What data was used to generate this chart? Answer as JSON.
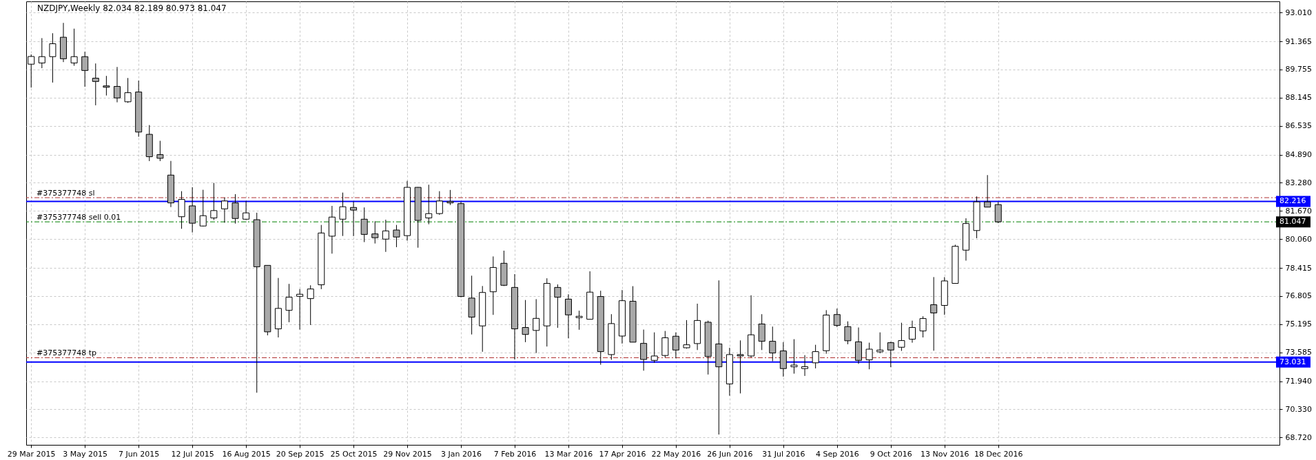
{
  "chart_data": {
    "type": "candlestick",
    "title": "NZDJPY,Weekly  82.034 82.189 80.973 81.047",
    "x": [
      "2015-03-29",
      "2015-04-05",
      "2015-04-12",
      "2015-04-19",
      "2015-04-26",
      "2015-05-03",
      "2015-05-10",
      "2015-05-17",
      "2015-05-24",
      "2015-05-31",
      "2015-06-07",
      "2015-06-14",
      "2015-06-21",
      "2015-06-28",
      "2015-07-05",
      "2015-07-12",
      "2015-07-19",
      "2015-07-26",
      "2015-08-02",
      "2015-08-09",
      "2015-08-16",
      "2015-08-23",
      "2015-08-30",
      "2015-09-06",
      "2015-09-13",
      "2015-09-20",
      "2015-09-27",
      "2015-10-04",
      "2015-10-11",
      "2015-10-18",
      "2015-10-25",
      "2015-11-01",
      "2015-11-08",
      "2015-11-15",
      "2015-11-22",
      "2015-11-29",
      "2015-12-06",
      "2015-12-13",
      "2015-12-20",
      "2015-12-27",
      "2016-01-03",
      "2016-01-10",
      "2016-01-17",
      "2016-01-24",
      "2016-01-31",
      "2016-02-07",
      "2016-02-14",
      "2016-02-21",
      "2016-02-28",
      "2016-03-06",
      "2016-03-13",
      "2016-03-20",
      "2016-03-27",
      "2016-04-03",
      "2016-04-10",
      "2016-04-17",
      "2016-04-24",
      "2016-05-01",
      "2016-05-08",
      "2016-05-15",
      "2016-05-22",
      "2016-05-29",
      "2016-06-05",
      "2016-06-12",
      "2016-06-19",
      "2016-06-26",
      "2016-07-03",
      "2016-07-10",
      "2016-07-17",
      "2016-07-24",
      "2016-07-31",
      "2016-08-07",
      "2016-08-14",
      "2016-08-21",
      "2016-08-28",
      "2016-09-04",
      "2016-09-11",
      "2016-09-18",
      "2016-09-25",
      "2016-10-02",
      "2016-10-09",
      "2016-10-16",
      "2016-10-23",
      "2016-10-30",
      "2016-11-06",
      "2016-11-13",
      "2016-11-20",
      "2016-11-27",
      "2016-12-04",
      "2016-12-11",
      "2016-12-18"
    ],
    "ohlc": [
      [
        90.06,
        90.62,
        88.72,
        90.5
      ],
      [
        90.13,
        91.55,
        89.83,
        90.49
      ],
      [
        90.49,
        91.83,
        89.01,
        91.23
      ],
      [
        91.6,
        92.42,
        90.18,
        90.37
      ],
      [
        90.13,
        92.09,
        89.97,
        90.49
      ],
      [
        90.49,
        90.77,
        88.77,
        89.7
      ],
      [
        89.26,
        90.1,
        87.71,
        89.07
      ],
      [
        88.82,
        89.39,
        88.27,
        88.74
      ],
      [
        88.79,
        89.9,
        87.88,
        88.13
      ],
      [
        87.91,
        89.27,
        87.85,
        88.43
      ],
      [
        88.47,
        89.12,
        85.91,
        86.18
      ],
      [
        86.05,
        86.58,
        84.52,
        84.77
      ],
      [
        84.89,
        85.68,
        84.52,
        84.68
      ],
      [
        83.72,
        84.53,
        81.89,
        82.13
      ],
      [
        81.34,
        82.8,
        80.65,
        82.33
      ],
      [
        81.96,
        83.03,
        80.44,
        80.97
      ],
      [
        80.81,
        82.88,
        80.78,
        81.4
      ],
      [
        81.27,
        83.27,
        81.15,
        81.69
      ],
      [
        81.79,
        82.43,
        81.0,
        82.24
      ],
      [
        82.13,
        82.63,
        80.95,
        81.24
      ],
      [
        81.2,
        82.24,
        81.15,
        81.56
      ],
      [
        81.17,
        81.57,
        71.28,
        78.48
      ],
      [
        78.56,
        78.56,
        74.56,
        74.76
      ],
      [
        74.93,
        77.84,
        74.44,
        76.1
      ],
      [
        75.99,
        77.5,
        75.31,
        76.74
      ],
      [
        76.79,
        77.21,
        74.89,
        76.91
      ],
      [
        76.66,
        77.42,
        75.15,
        77.21
      ],
      [
        77.45,
        80.87,
        77.2,
        80.41
      ],
      [
        80.23,
        81.96,
        79.23,
        81.32
      ],
      [
        81.2,
        82.72,
        80.24,
        81.91
      ],
      [
        81.87,
        82.21,
        80.23,
        81.72
      ],
      [
        81.2,
        81.87,
        79.89,
        80.33
      ],
      [
        80.36,
        81.08,
        79.81,
        80.14
      ],
      [
        80.06,
        81.17,
        79.33,
        80.53
      ],
      [
        80.58,
        80.87,
        79.6,
        80.18
      ],
      [
        80.26,
        83.39,
        79.97,
        83.02
      ],
      [
        83.02,
        83.03,
        79.57,
        81.13
      ],
      [
        81.27,
        83.17,
        80.91,
        81.52
      ],
      [
        81.52,
        82.8,
        81.45,
        82.24
      ],
      [
        82.21,
        82.87,
        82.01,
        82.13
      ],
      [
        82.09,
        82.19,
        76.74,
        76.78
      ],
      [
        76.69,
        77.97,
        74.61,
        75.6
      ],
      [
        75.1,
        77.38,
        73.62,
        77.01
      ],
      [
        77.05,
        79.07,
        75.73,
        78.44
      ],
      [
        78.68,
        79.4,
        77.38,
        77.42
      ],
      [
        77.3,
        78.06,
        73.18,
        74.93
      ],
      [
        75.01,
        76.58,
        74.17,
        74.61
      ],
      [
        74.84,
        76.63,
        73.55,
        75.53
      ],
      [
        75.1,
        77.82,
        73.92,
        77.53
      ],
      [
        77.3,
        77.47,
        74.99,
        76.74
      ],
      [
        76.63,
        76.91,
        74.39,
        75.73
      ],
      [
        75.57,
        75.97,
        74.88,
        75.65
      ],
      [
        75.48,
        78.22,
        75.48,
        77.03
      ],
      [
        76.78,
        77.11,
        72.88,
        73.63
      ],
      [
        73.46,
        75.77,
        73.16,
        75.23
      ],
      [
        74.52,
        77.15,
        74.09,
        76.54
      ],
      [
        76.51,
        77.37,
        74.17,
        74.17
      ],
      [
        74.1,
        74.89,
        72.54,
        73.18
      ],
      [
        73.13,
        74.73,
        72.99,
        73.38
      ],
      [
        73.41,
        74.81,
        73.3,
        74.42
      ],
      [
        74.51,
        74.73,
        73.25,
        73.72
      ],
      [
        73.85,
        75.43,
        73.8,
        74.02
      ],
      [
        74.09,
        76.37,
        73.72,
        75.41
      ],
      [
        75.31,
        75.4,
        72.32,
        73.35
      ],
      [
        74.07,
        77.7,
        68.89,
        72.76
      ],
      [
        71.78,
        73.85,
        71.11,
        73.46
      ],
      [
        73.46,
        74.27,
        71.24,
        73.38
      ],
      [
        73.38,
        76.85,
        73.3,
        74.59
      ],
      [
        75.21,
        75.77,
        73.72,
        74.22
      ],
      [
        74.22,
        75.06,
        73.08,
        73.55
      ],
      [
        73.67,
        74.17,
        72.2,
        72.66
      ],
      [
        72.76,
        74.34,
        72.37,
        72.86
      ],
      [
        72.66,
        73.43,
        72.24,
        72.77
      ],
      [
        72.99,
        74.02,
        72.67,
        73.63
      ],
      [
        73.68,
        76.0,
        73.51,
        75.72
      ],
      [
        75.75,
        76.09,
        75.03,
        75.13
      ],
      [
        75.06,
        75.36,
        74.05,
        74.25
      ],
      [
        74.19,
        75.01,
        72.93,
        73.13
      ],
      [
        73.16,
        74.14,
        72.62,
        73.77
      ],
      [
        73.62,
        74.73,
        73.53,
        73.72
      ],
      [
        74.14,
        74.19,
        72.74,
        73.72
      ],
      [
        73.88,
        75.28,
        73.67,
        74.26
      ],
      [
        74.34,
        75.4,
        74.14,
        75.01
      ],
      [
        74.81,
        75.65,
        74.44,
        75.52
      ],
      [
        76.31,
        77.89,
        73.68,
        75.84
      ],
      [
        76.27,
        77.89,
        75.73,
        77.67
      ],
      [
        77.53,
        79.74,
        77.53,
        79.65
      ],
      [
        79.43,
        81.25,
        78.83,
        80.95
      ],
      [
        80.55,
        82.5,
        80.11,
        82.19
      ],
      [
        82.19,
        83.72,
        81.89,
        81.89
      ],
      [
        82.034,
        82.189,
        80.973,
        81.047
      ]
    ],
    "xlim": [
      "2015-03-28",
      "2017-06-17"
    ],
    "xticks": [
      {
        "value": "2015-03-29",
        "label": "29 Mar 2015"
      },
      {
        "value": "2015-05-03",
        "label": "3 May 2015"
      },
      {
        "value": "2015-06-07",
        "label": "7 Jun 2015"
      },
      {
        "value": "2015-07-12",
        "label": "12 Jul 2015"
      },
      {
        "value": "2015-08-16",
        "label": "16 Aug 2015"
      },
      {
        "value": "2015-09-20",
        "label": "20 Sep 2015"
      },
      {
        "value": "2015-10-25",
        "label": "25 Oct 2015"
      },
      {
        "value": "2015-11-29",
        "label": "29 Nov 2015"
      },
      {
        "value": "2016-01-03",
        "label": "3 Jan 2016"
      },
      {
        "value": "2016-02-07",
        "label": "7 Feb 2016"
      },
      {
        "value": "2016-03-13",
        "label": "13 Mar 2016"
      },
      {
        "value": "2016-04-17",
        "label": "17 Apr 2016"
      },
      {
        "value": "2016-05-22",
        "label": "22 May 2016"
      },
      {
        "value": "2016-06-26",
        "label": "26 Jun 2016"
      },
      {
        "value": "2016-07-31",
        "label": "31 Jul 2016"
      },
      {
        "value": "2016-09-04",
        "label": "4 Sep 2016"
      },
      {
        "value": "2016-10-09",
        "label": "9 Oct 2016"
      },
      {
        "value": "2016-11-13",
        "label": "13 Nov 2016"
      },
      {
        "value": "2016-12-18",
        "label": "18 Dec 2016"
      }
    ],
    "ylim": [
      68.3,
      93.65
    ],
    "yticks": [
      {
        "value": 93.01,
        "label": "93.010"
      },
      {
        "value": 91.365,
        "label": "91.365"
      },
      {
        "value": 89.755,
        "label": "89.755"
      },
      {
        "value": 88.145,
        "label": "88.145"
      },
      {
        "value": 86.535,
        "label": "86.535"
      },
      {
        "value": 84.89,
        "label": "84.890"
      },
      {
        "value": 83.28,
        "label": "83.280"
      },
      {
        "value": 81.67,
        "label": "81.670"
      },
      {
        "value": 80.06,
        "label": "80.060"
      },
      {
        "value": 78.415,
        "label": "78.415"
      },
      {
        "value": 76.805,
        "label": "76.805"
      },
      {
        "value": 75.195,
        "label": "75.195"
      },
      {
        "value": 73.585,
        "label": "73.585"
      },
      {
        "value": 71.94,
        "label": "71.940"
      },
      {
        "value": 70.33,
        "label": "70.330"
      },
      {
        "value": 68.72,
        "label": "68.720"
      }
    ],
    "ref_lines": [
      {
        "axis": "y",
        "value": 82.43,
        "label": "#375377748 sl",
        "color": "#b03030",
        "line_style": "dashed"
      },
      {
        "axis": "y",
        "value": 82.216,
        "label": "82.216",
        "color": "#0000ff",
        "line_style": "solid"
      },
      {
        "axis": "y",
        "value": 81.047,
        "label": "#375377748 sell 0.01",
        "color": "#008000",
        "line_style": "dashed"
      },
      {
        "axis": "y",
        "value": 73.28,
        "label": "#375377748 tp",
        "color": "#b03030",
        "line_style": "dashed"
      },
      {
        "axis": "y",
        "value": 73.031,
        "label": "73.031",
        "color": "#0000ff",
        "line_style": "solid"
      }
    ],
    "annotations": [
      "81.047"
    ],
    "grid": true
  }
}
